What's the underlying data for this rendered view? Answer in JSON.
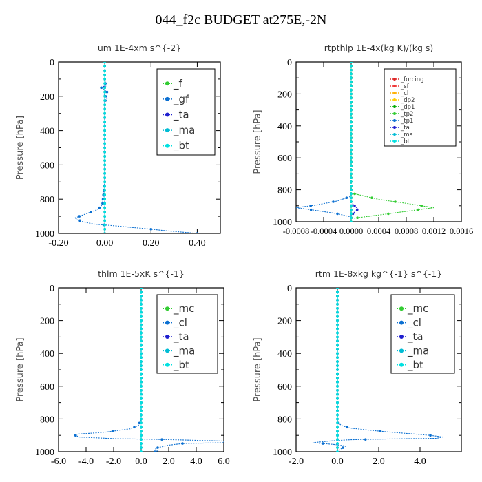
{
  "title": "044_f2c  BUDGET at275E,-2N",
  "chart_data": [
    {
      "type": "line",
      "title": "um   1E-4xm s^{-2}",
      "ylabel": "Pressure [hPa]",
      "xlim": [
        -0.2,
        0.5
      ],
      "ylim": [
        1000,
        0
      ],
      "xticks": [
        -0.2,
        0.0,
        0.2,
        0.4
      ],
      "xtick_labels": [
        "-0.20",
        "0.00",
        "0.20",
        "0.40"
      ],
      "yticks": [
        0,
        200,
        400,
        600,
        800,
        1000
      ],
      "legend": [
        "_f",
        "_gf",
        "_ta",
        "_ma",
        "_bt"
      ],
      "legend_location": "top-right",
      "series": [
        {
          "name": "_f",
          "color": "#33cc33",
          "x": [
            0,
            0,
            0,
            0,
            0,
            0,
            0,
            0,
            0,
            0,
            0
          ],
          "y": [
            0,
            100,
            200,
            300,
            400,
            500,
            600,
            700,
            800,
            900,
            1000
          ]
        },
        {
          "name": "_gf",
          "color": "#0a6fd1",
          "x": [
            0,
            0,
            0.005,
            -0.015,
            0.01,
            -0.005,
            0.012,
            0,
            0,
            0,
            0,
            -0.01,
            -0.03,
            -0.07,
            -0.11,
            -0.13,
            -0.1,
            -0.05,
            0.04,
            0.12,
            0.2,
            0.27,
            0.34,
            0.4,
            0.41
          ],
          "y": [
            0,
            100,
            140,
            150,
            175,
            190,
            210,
            230,
            300,
            500,
            700,
            830,
            860,
            880,
            900,
            910,
            930,
            945,
            955,
            965,
            975,
            985,
            993,
            1000,
            1005
          ]
        },
        {
          "name": "_ta",
          "color": "#1f1fcf",
          "x": [
            0,
            0,
            -0.01,
            0,
            0
          ],
          "y": [
            0,
            140,
            145,
            150,
            1000
          ]
        },
        {
          "name": "_ma",
          "color": "#00bcd4",
          "x": [
            0,
            0
          ],
          "y": [
            0,
            1000
          ]
        },
        {
          "name": "_bt",
          "color": "#00e0e0",
          "x": [
            0,
            0
          ],
          "y": [
            0,
            1000
          ]
        }
      ]
    },
    {
      "type": "line",
      "title": "rtpthlp   1E-4x(kg K)/(kg s)",
      "ylabel": "Pressure [hPa]",
      "xlim": [
        -0.0008,
        0.0016
      ],
      "ylim": [
        1000,
        0
      ],
      "xticks": [
        -0.0008,
        -0.0004,
        0.0,
        0.0004,
        0.0008,
        0.0012,
        0.0016
      ],
      "xtick_labels": [
        "-0.0008",
        "-0.0004",
        "0.0000",
        "0.0004",
        "0.0008",
        "0.0012",
        "0.0016"
      ],
      "yticks": [
        0,
        200,
        400,
        600,
        800,
        1000
      ],
      "legend": [
        "_forcing",
        "_sf",
        "_cl",
        "_dp2",
        "_dp1",
        "_tp2",
        "_tp1",
        "_ta",
        "_ma",
        "_bt"
      ],
      "legend_location": "top-right",
      "series": [
        {
          "name": "_forcing",
          "color": "#dd2222",
          "x": [
            0,
            0
          ],
          "y": [
            0,
            1000
          ]
        },
        {
          "name": "_sf",
          "color": "#ee3333",
          "x": [
            0,
            0
          ],
          "y": [
            0,
            1000
          ]
        },
        {
          "name": "_cl",
          "color": "#ffb000",
          "x": [
            0,
            0
          ],
          "y": [
            0,
            1000
          ]
        },
        {
          "name": "_dp2",
          "color": "#ffcc00",
          "x": [
            0,
            0
          ],
          "y": [
            0,
            1000
          ]
        },
        {
          "name": "_dp1",
          "color": "#00aa00",
          "x": [
            0,
            0
          ],
          "y": [
            0,
            1000
          ]
        },
        {
          "name": "_tp2",
          "color": "#33cc33",
          "x": [
            0,
            0,
            0.0004,
            0.0008,
            0.0012,
            0.0008,
            0.0004,
            0,
            0
          ],
          "y": [
            0,
            820,
            860,
            885,
            912,
            935,
            958,
            980,
            1000
          ]
        },
        {
          "name": "_tp1",
          "color": "#0a6fd1",
          "x": [
            0,
            0,
            -0.0002,
            -0.0005,
            -0.0008,
            -0.0005,
            -0.0002,
            0,
            0
          ],
          "y": [
            0,
            840,
            870,
            895,
            912,
            930,
            950,
            970,
            1000
          ]
        },
        {
          "name": "_ta",
          "color": "#1f1fcf",
          "x": [
            0,
            0,
            5e-05,
            0.0001,
            5e-05,
            0,
            0
          ],
          "y": [
            0,
            880,
            900,
            920,
            940,
            960,
            1000
          ]
        },
        {
          "name": "_ma",
          "color": "#00bcd4",
          "x": [
            0,
            0
          ],
          "y": [
            0,
            1000
          ]
        },
        {
          "name": "_bt",
          "color": "#00e0e0",
          "x": [
            0,
            0
          ],
          "y": [
            0,
            1000
          ]
        }
      ]
    },
    {
      "type": "line",
      "title": "thlm   1E-5xK s^{-1}",
      "ylabel": "Pressure [hPa]",
      "xlim": [
        -6.0,
        6.0
      ],
      "ylim": [
        1000,
        0
      ],
      "xticks": [
        -6,
        -4,
        -2,
        0,
        2,
        4,
        6
      ],
      "xtick_labels": [
        "-6.0",
        "-4.0",
        "-2.0",
        "0.0",
        "2.0",
        "4.0",
        "6.0"
      ],
      "yticks": [
        0,
        200,
        400,
        600,
        800,
        1000
      ],
      "legend": [
        "_mc",
        "_cl",
        "_ta",
        "_ma",
        "_bt"
      ],
      "legend_location": "top-right",
      "series": [
        {
          "name": "_mc",
          "color": "#33cc33",
          "x": [
            0,
            0
          ],
          "y": [
            0,
            1000
          ]
        },
        {
          "name": "_cl",
          "color": "#0a6fd1",
          "x": [
            0,
            0,
            -0.2,
            -0.8,
            -2.5,
            -4.9,
            -4.5,
            -2.0,
            1.5,
            6.0,
            6.0,
            3.0,
            2.0,
            1.2,
            1.0,
            1.2,
            1.0
          ],
          "y": [
            0,
            800,
            840,
            860,
            880,
            895,
            910,
            920,
            925,
            935,
            945,
            950,
            960,
            975,
            985,
            995,
            1000
          ]
        },
        {
          "name": "_ta",
          "color": "#1f1fcf",
          "x": [
            0,
            0
          ],
          "y": [
            0,
            1000
          ]
        },
        {
          "name": "_ma",
          "color": "#00bcd4",
          "x": [
            0,
            0
          ],
          "y": [
            0,
            1000
          ]
        },
        {
          "name": "_bt",
          "color": "#00e0e0",
          "x": [
            0,
            0
          ],
          "y": [
            0,
            1000
          ]
        }
      ]
    },
    {
      "type": "line",
      "title": "rtm   1E-8xkg kg^{-1} s^{-1}",
      "ylabel": "Pressure [hPa]",
      "xlim": [
        -2.0,
        6.0
      ],
      "ylim": [
        1000,
        0
      ],
      "xticks": [
        -2,
        0,
        2,
        4
      ],
      "xtick_labels": [
        "-2.0",
        "0.0",
        "2.0",
        "4.0"
      ],
      "yticks": [
        0,
        200,
        400,
        600,
        800,
        1000
      ],
      "legend": [
        "_mc",
        "_cl",
        "_ta",
        "_ma",
        "_bt"
      ],
      "legend_location": "top-right",
      "series": [
        {
          "name": "_mc",
          "color": "#33cc33",
          "x": [
            0,
            0
          ],
          "y": [
            0,
            1000
          ]
        },
        {
          "name": "_cl",
          "color": "#0a6fd1",
          "x": [
            0,
            0,
            0.2,
            0.6,
            1.5,
            2.5,
            4.5,
            5.1,
            4.8,
            2.5,
            0.6,
            -0.3,
            -1.2,
            -0.2,
            0.4,
            0.2,
            0.0
          ],
          "y": [
            0,
            820,
            840,
            855,
            868,
            880,
            900,
            910,
            918,
            922,
            927,
            934,
            945,
            955,
            965,
            980,
            1000
          ]
        },
        {
          "name": "_ta",
          "color": "#1f1fcf",
          "x": [
            0,
            0
          ],
          "y": [
            0,
            1000
          ]
        },
        {
          "name": "_ma",
          "color": "#00bcd4",
          "x": [
            0,
            0
          ],
          "y": [
            0,
            1000
          ]
        },
        {
          "name": "_bt",
          "color": "#00e0e0",
          "x": [
            0,
            0
          ],
          "y": [
            0,
            1000
          ]
        }
      ]
    }
  ]
}
